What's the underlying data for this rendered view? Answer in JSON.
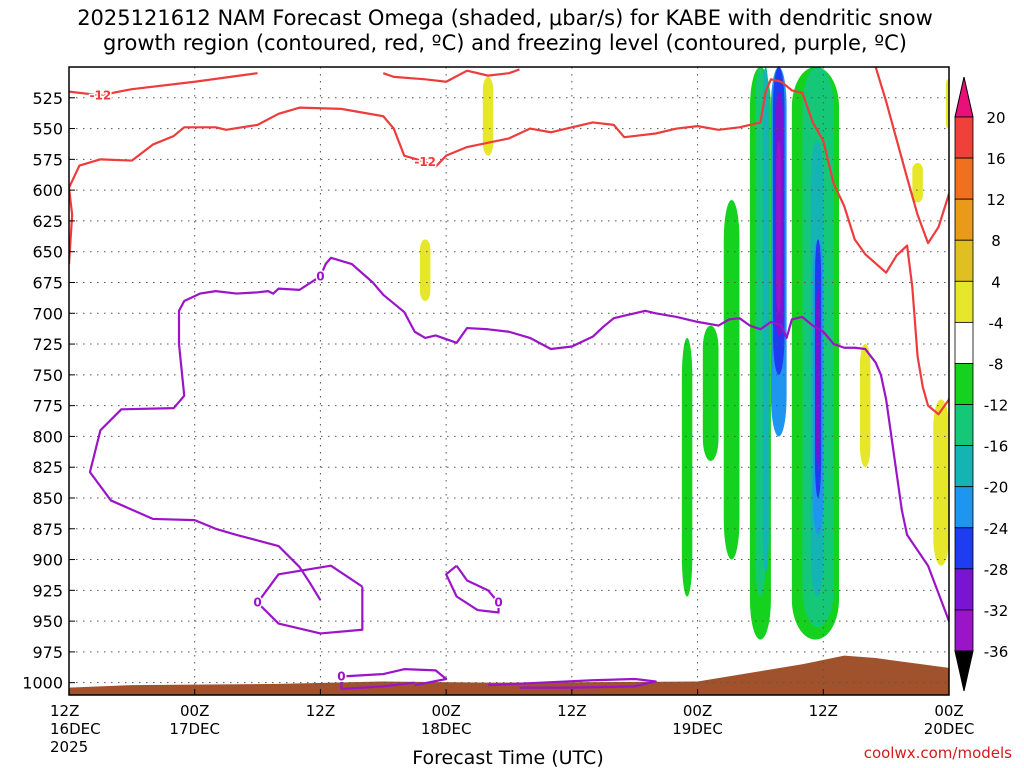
{
  "title": "2025121612 NAM Forecast Omega (shaded, μbar/s) for KABE with dendritic snow\ngrowth region (contoured, red, ºC) and freezing level (contoured, purple, ºC)",
  "footer": {
    "site": "coolwx.com/models"
  },
  "chart_data": {
    "type": "heatmap",
    "title": "2025121612 NAM Forecast Omega (shaded, μbar/s) for KABE with dendritic snow growth region (contoured, red, ºC) and freezing level (contoured, purple, ºC)",
    "xlabel": "Forecast Time (UTC)",
    "ylabel": "",
    "x_range_hours": [
      0,
      84
    ],
    "y_axis": {
      "reversed": true,
      "ylim": [
        1010,
        500
      ],
      "ticks": [
        525,
        550,
        575,
        600,
        625,
        650,
        675,
        700,
        725,
        750,
        775,
        800,
        825,
        850,
        875,
        900,
        925,
        950,
        975,
        1000
      ]
    },
    "x_ticks": [
      {
        "hour": 0,
        "lines": [
          "12Z",
          "16DEC",
          "2025"
        ]
      },
      {
        "hour": 12,
        "lines": [
          "00Z",
          "17DEC"
        ]
      },
      {
        "hour": 24,
        "lines": [
          "12Z"
        ]
      },
      {
        "hour": 36,
        "lines": [
          "00Z",
          "18DEC"
        ]
      },
      {
        "hour": 48,
        "lines": [
          "12Z"
        ]
      },
      {
        "hour": 60,
        "lines": [
          "00Z",
          "19DEC"
        ]
      },
      {
        "hour": 72,
        "lines": [
          "12Z"
        ]
      },
      {
        "hour": 84,
        "lines": [
          "00Z",
          "20DEC"
        ]
      }
    ],
    "grid": true,
    "colorbar": {
      "labels": [
        "20",
        "16",
        "12",
        "8",
        "4",
        "-4",
        "-8",
        "-12",
        "-16",
        "-20",
        "-24",
        "-28",
        "-32",
        "-36"
      ],
      "colors": [
        "#e8117a",
        "#f0403a",
        "#f07020",
        "#e89a18",
        "#e0c020",
        "#e6e62a",
        "#ffffff",
        "#14d21e",
        "#14c878",
        "#14b4b4",
        "#1e96f0",
        "#1e3cf0",
        "#7814d2",
        "#9a14c8",
        "#aaaaaa",
        "#000000"
      ]
    },
    "series": [
      {
        "name": "",
        "color": "#ee3c3c",
        "contour_label": "-12",
        "points": [
          [
            0,
            520
          ],
          [
            3,
            523
          ],
          [
            6,
            518
          ],
          [
            12,
            512
          ],
          [
            18,
            505
          ]
        ]
      },
      {
        "name": "",
        "color": "#ee3c3c",
        "contour_label": "-12",
        "points": [
          [
            0,
            660
          ],
          [
            0.3,
            620
          ],
          [
            0,
            598
          ],
          [
            1,
            580
          ],
          [
            3,
            575
          ],
          [
            6,
            576
          ],
          [
            8,
            563
          ],
          [
            10,
            556
          ],
          [
            11,
            549
          ],
          [
            14,
            549
          ],
          [
            15,
            551
          ],
          [
            18,
            547
          ],
          [
            20,
            538
          ],
          [
            22,
            533
          ],
          [
            26,
            534
          ],
          [
            30,
            540
          ],
          [
            31,
            550
          ],
          [
            32,
            572
          ],
          [
            34,
            577
          ],
          [
            35,
            581
          ],
          [
            36,
            572
          ],
          [
            38,
            565
          ],
          [
            42,
            558
          ],
          [
            44,
            550
          ],
          [
            46,
            553
          ],
          [
            48,
            549
          ],
          [
            50,
            545
          ],
          [
            52,
            547
          ],
          [
            53,
            557
          ],
          [
            56,
            554
          ],
          [
            58,
            550
          ],
          [
            60,
            548
          ],
          [
            62,
            551
          ],
          [
            64,
            549
          ],
          [
            66,
            545
          ],
          [
            66.5,
            520
          ],
          [
            67,
            510
          ],
          [
            68,
            512
          ],
          [
            69,
            519
          ],
          [
            70,
            521
          ],
          [
            71,
            545
          ],
          [
            72,
            560
          ],
          [
            73,
            595
          ],
          [
            74,
            613
          ],
          [
            75,
            640
          ],
          [
            76,
            652
          ],
          [
            78,
            667
          ],
          [
            79,
            653
          ],
          [
            80,
            645
          ],
          [
            80.5,
            679
          ],
          [
            81,
            735
          ],
          [
            81.5,
            760
          ],
          [
            82,
            775
          ],
          [
            83,
            782
          ],
          [
            84,
            770
          ],
          [
            84.5,
            750
          ]
        ]
      },
      {
        "name": "",
        "color": "#ee3c3c",
        "contour_label": "",
        "points": [
          [
            84,
            603
          ],
          [
            83,
            630
          ],
          [
            82,
            643
          ],
          [
            81,
            620
          ],
          [
            80,
            590
          ],
          [
            78,
            528
          ],
          [
            77,
            500
          ]
        ]
      },
      {
        "name": "",
        "color": "#ee3c3c",
        "contour_label": "",
        "points": [
          [
            30,
            505
          ],
          [
            31,
            508
          ],
          [
            34,
            510
          ],
          [
            36,
            512
          ],
          [
            38,
            503
          ],
          [
            40,
            507
          ],
          [
            42,
            505
          ],
          [
            43,
            502
          ]
        ]
      },
      {
        "name": "",
        "color": "#9c14c8",
        "contour_label": "0",
        "points": [
          [
            33,
            1000
          ],
          [
            30,
            1003
          ],
          [
            26,
            1005
          ],
          [
            26,
            995
          ],
          [
            30,
            993
          ],
          [
            32,
            989
          ],
          [
            35,
            990
          ],
          [
            36,
            997
          ],
          [
            33,
            1002
          ]
        ]
      },
      {
        "name": "",
        "color": "#9c14c8",
        "contour_label": "0",
        "points": [
          [
            24,
            933
          ],
          [
            23,
            919
          ],
          [
            22,
            906
          ],
          [
            20,
            889
          ],
          [
            16,
            880
          ],
          [
            14,
            875
          ],
          [
            12,
            868
          ],
          [
            8,
            867
          ],
          [
            4,
            852
          ],
          [
            2,
            829
          ],
          [
            3,
            795
          ],
          [
            5,
            778
          ],
          [
            10,
            777
          ],
          [
            11,
            767
          ],
          [
            10.5,
            725
          ],
          [
            10.5,
            698
          ],
          [
            11,
            690
          ],
          [
            12.5,
            684
          ],
          [
            14,
            682
          ],
          [
            16,
            684
          ],
          [
            18,
            683
          ],
          [
            19,
            682
          ],
          [
            19.5,
            684
          ],
          [
            20,
            680
          ],
          [
            22,
            681
          ],
          [
            24,
            670
          ],
          [
            24.5,
            660
          ],
          [
            25,
            655
          ],
          [
            27,
            660
          ],
          [
            29,
            675
          ],
          [
            30,
            685
          ],
          [
            32,
            699
          ],
          [
            33,
            715
          ],
          [
            34,
            720
          ],
          [
            35,
            718
          ],
          [
            37,
            724
          ],
          [
            38,
            712
          ],
          [
            40,
            713
          ],
          [
            42,
            715
          ],
          [
            44,
            720
          ],
          [
            46,
            729
          ],
          [
            48,
            727
          ],
          [
            50,
            719
          ],
          [
            51,
            711
          ],
          [
            52,
            704
          ],
          [
            53,
            702
          ],
          [
            54,
            700
          ],
          [
            55,
            698
          ],
          [
            56,
            700
          ],
          [
            58,
            703
          ],
          [
            60,
            707
          ],
          [
            62,
            710
          ],
          [
            63,
            705
          ],
          [
            64,
            704
          ],
          [
            65,
            710
          ],
          [
            66,
            713
          ],
          [
            67,
            707
          ],
          [
            68,
            710
          ],
          [
            68.5,
            720
          ],
          [
            69,
            705
          ],
          [
            70,
            703
          ],
          [
            71,
            710
          ],
          [
            72,
            715
          ],
          [
            73,
            725
          ],
          [
            74,
            728
          ],
          [
            75,
            728
          ],
          [
            76,
            729
          ],
          [
            77,
            740
          ],
          [
            77.5,
            750
          ],
          [
            78,
            770
          ],
          [
            78.5,
            800
          ],
          [
            79,
            830
          ],
          [
            79.5,
            860
          ],
          [
            80,
            880
          ],
          [
            82,
            905
          ],
          [
            84,
            950
          ],
          [
            86,
            975
          ]
        ]
      },
      {
        "name": "",
        "color": "#9c14c8",
        "contour_label": "0",
        "points": [
          [
            28,
            922
          ],
          [
            25,
            905
          ],
          [
            20,
            912
          ],
          [
            18,
            935
          ],
          [
            20,
            952
          ],
          [
            24,
            960
          ],
          [
            28,
            957
          ],
          [
            28,
            940
          ],
          [
            28,
            922
          ]
        ]
      },
      {
        "name": "",
        "color": "#9c14c8",
        "contour_label": "0",
        "points": [
          [
            37,
            905
          ],
          [
            38,
            917
          ],
          [
            40,
            925
          ],
          [
            41,
            935
          ],
          [
            41,
            943
          ],
          [
            39,
            941
          ],
          [
            37,
            930
          ],
          [
            36,
            912
          ],
          [
            37,
            905
          ]
        ]
      },
      {
        "name": "",
        "color": "#9c14c8",
        "contour_label": "",
        "points": [
          [
            40,
            1002
          ],
          [
            45,
            1000
          ],
          [
            50,
            998
          ],
          [
            54,
            997
          ],
          [
            56,
            999
          ],
          [
            54,
            1003
          ],
          [
            48,
            1004
          ],
          [
            43,
            1004
          ]
        ]
      }
    ],
    "shading": [
      {
        "level": "4",
        "color": "#e6e62a",
        "x": [
          39.5,
          40.5
        ],
        "y": [
          508,
          572
        ]
      },
      {
        "level": "4",
        "color": "#e6e62a",
        "x": [
          33.5,
          34.5
        ],
        "y": [
          640,
          690
        ]
      },
      {
        "level": "4",
        "color": "#e6e62a",
        "x": [
          80.5,
          81.5
        ],
        "y": [
          578,
          610
        ]
      },
      {
        "level": "4",
        "color": "#e6e62a",
        "x": [
          82.5,
          84
        ],
        "y": [
          770,
          905
        ]
      },
      {
        "level": "4",
        "color": "#e6e62a",
        "x": [
          83.7,
          84
        ],
        "y": [
          510,
          550
        ]
      },
      {
        "level": "4",
        "color": "#e6e62a",
        "x": [
          75.5,
          76.5
        ],
        "y": [
          725,
          825
        ]
      },
      {
        "level": "-8",
        "color": "#14d21e",
        "x": [
          58.5,
          59.5
        ],
        "y": [
          720,
          930
        ]
      },
      {
        "level": "-8",
        "color": "#14d21e",
        "x": [
          60.5,
          62
        ],
        "y": [
          710,
          820
        ]
      },
      {
        "level": "-8",
        "color": "#14d21e",
        "x": [
          62.5,
          64
        ],
        "y": [
          608,
          900
        ]
      },
      {
        "level": "-8",
        "color": "#14d21e",
        "x": [
          65,
          67
        ],
        "y": [
          500,
          965
        ]
      },
      {
        "level": "-8",
        "color": "#14d21e",
        "x": [
          69,
          73.5
        ],
        "y": [
          500,
          965
        ]
      },
      {
        "level": "-12",
        "color": "#14c878",
        "x": [
          65.5,
          66.5
        ],
        "y": [
          500,
          930
        ]
      },
      {
        "level": "-12",
        "color": "#14c878",
        "x": [
          70,
          73
        ],
        "y": [
          500,
          955
        ]
      },
      {
        "level": "-16",
        "color": "#14b4b4",
        "x": [
          66.2,
          66.8
        ],
        "y": [
          500,
          910
        ]
      },
      {
        "level": "-16",
        "color": "#14b4b4",
        "x": [
          70.8,
          72
        ],
        "y": [
          560,
          930
        ]
      },
      {
        "level": "-20",
        "color": "#1e96f0",
        "x": [
          67,
          68.5
        ],
        "y": [
          500,
          800
        ]
      },
      {
        "level": "-20",
        "color": "#1e96f0",
        "x": [
          71,
          72
        ],
        "y": [
          640,
          880
        ]
      },
      {
        "level": "-24",
        "color": "#1e3cf0",
        "x": [
          67.2,
          68.3
        ],
        "y": [
          500,
          750
        ]
      },
      {
        "level": "-24",
        "color": "#1e3cf0",
        "x": [
          71.2,
          71.8
        ],
        "y": [
          640,
          850
        ]
      },
      {
        "level": "-28",
        "color": "#7814d2",
        "x": [
          67.4,
          68.2
        ],
        "y": [
          520,
          720
        ]
      },
      {
        "level": "-28",
        "color": "#7814d2",
        "x": [
          71.3,
          71.7
        ],
        "y": [
          680,
          825
        ]
      },
      {
        "level": "-32",
        "color": "#9a14c8",
        "x": [
          67.5,
          68
        ],
        "y": [
          560,
          700
        ]
      }
    ],
    "terrain": {
      "color": "#a0522d",
      "points": [
        [
          0,
          1004
        ],
        [
          6,
          1002
        ],
        [
          20,
          1001
        ],
        [
          30,
          999
        ],
        [
          40,
          1000
        ],
        [
          60,
          999
        ],
        [
          70,
          985
        ],
        [
          74,
          978
        ],
        [
          77,
          980
        ],
        [
          84,
          988
        ]
      ]
    }
  }
}
